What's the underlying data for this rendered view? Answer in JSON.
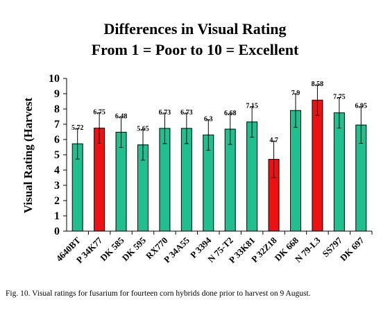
{
  "chart_data": {
    "type": "bar",
    "title_lines": [
      "Differences in Visual Rating",
      "From 1 = Poor to 10 = Excellent"
    ],
    "ylabel": "Visual Rating (Harvest",
    "xlabel": "",
    "ylim": [
      0,
      10
    ],
    "yticks": [
      0,
      1,
      2,
      3,
      4,
      5,
      6,
      7,
      8,
      9,
      10
    ],
    "categories": [
      "4640BT",
      "P 34K77",
      "DK 585",
      "DK 595",
      "RX770",
      "P 34A55",
      "P 3394",
      "N 75-T2",
      "P 33K81",
      "P 32Z18",
      "DK 668",
      "N 79-L3",
      "SS797",
      "DK 697"
    ],
    "values": [
      5.72,
      6.75,
      6.48,
      5.65,
      6.73,
      6.73,
      6.3,
      6.68,
      7.15,
      4.7,
      7.9,
      8.58,
      7.75,
      6.95
    ],
    "value_labels": [
      "5.72",
      "6.75",
      "6.48",
      "5.65",
      "6.73",
      "6.73",
      "6.3",
      "6.68",
      "7.15",
      "4.7",
      "7.9",
      "8.58",
      "7.75",
      "6.95"
    ],
    "error_bars": [
      1.0,
      1.0,
      1.0,
      1.0,
      1.0,
      1.0,
      1.0,
      1.0,
      1.0,
      1.2,
      1.1,
      1.0,
      1.0,
      1.2
    ],
    "bar_colors": [
      "#1fbf8f",
      "#ee1111",
      "#1fbf8f",
      "#1fbf8f",
      "#1fbf8f",
      "#1fbf8f",
      "#1fbf8f",
      "#1fbf8f",
      "#1fbf8f",
      "#ee1111",
      "#1fbf8f",
      "#ee1111",
      "#1fbf8f",
      "#1fbf8f"
    ],
    "grid": false,
    "legend": "none"
  },
  "caption": "Fig. 10.  Visual ratings for fusarium for fourteen corn hybrids done prior to harvest on 9 August."
}
